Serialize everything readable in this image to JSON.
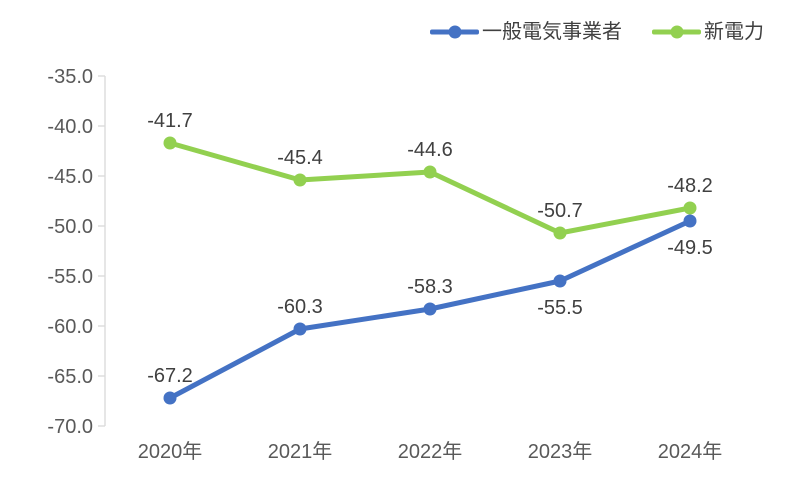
{
  "chart_data": {
    "type": "line",
    "categories": [
      "2020年",
      "2021年",
      "2022年",
      "2023年",
      "2024年"
    ],
    "series": [
      {
        "name": "一般電気事業者",
        "color": "#4472C4",
        "values": [
          -67.2,
          -60.3,
          -58.3,
          -55.5,
          -49.5
        ],
        "labels": [
          "-67.2",
          "-60.3",
          "-58.3",
          "-55.5",
          "-49.5"
        ],
        "label_positions": [
          "above",
          "above",
          "above",
          "below",
          "below"
        ]
      },
      {
        "name": "新電力",
        "color": "#92D050",
        "values": [
          -41.7,
          -45.4,
          -44.6,
          -50.7,
          -48.2
        ],
        "labels": [
          "-41.7",
          "-45.4",
          "-44.6",
          "-50.7",
          "-48.2"
        ],
        "label_positions": [
          "above",
          "above",
          "above",
          "above",
          "above"
        ]
      }
    ],
    "ylim": [
      -70,
      -35
    ],
    "yticks": [
      -35,
      -40,
      -45,
      -50,
      -55,
      -60,
      -65,
      -70
    ],
    "ytick_labels": [
      "-35.0",
      "-40.0",
      "-45.0",
      "-50.0",
      "-55.0",
      "-60.0",
      "-65.0",
      "-70.0"
    ],
    "grid": false,
    "legend_position": "top-right",
    "marker": "circle",
    "axis_color": "#D9D9D9",
    "tick_label_color": "#595959",
    "data_label_color": "#404040"
  }
}
